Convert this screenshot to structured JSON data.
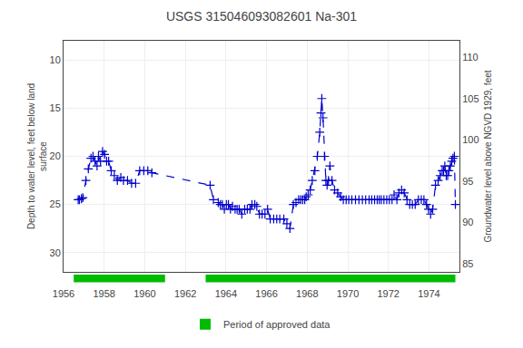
{
  "chart_data": {
    "type": "line",
    "title": "USGS 315046093082601 Na-301",
    "ylabel": "Depth to water level, feet below land\nsurface",
    "y2label": "Groundwater level above NGVD 1929, feet",
    "xlim": [
      1956,
      1975.5
    ],
    "xticks": [
      1956,
      1958,
      1960,
      1962,
      1964,
      1966,
      1968,
      1970,
      1972,
      1974
    ],
    "ylim": [
      32,
      8
    ],
    "yticks": [
      10,
      15,
      20,
      25,
      30
    ],
    "y2lim": [
      84,
      112
    ],
    "y2ticks": [
      85,
      90,
      95,
      100,
      105,
      110
    ],
    "grid": true,
    "legend": "bottom",
    "x": [
      1956.72,
      1956.78,
      1956.88,
      1956.95,
      1957.1,
      1957.22,
      1957.35,
      1957.45,
      1957.55,
      1957.65,
      1957.72,
      1957.82,
      1957.92,
      1958.02,
      1958.12,
      1958.22,
      1958.35,
      1958.5,
      1958.65,
      1958.82,
      1958.95,
      1959.15,
      1959.35,
      1959.55,
      1959.75,
      1959.95,
      1960.15,
      1960.35,
      1963.22,
      1963.38,
      1963.62,
      1963.72,
      1963.82,
      1963.92,
      1964.02,
      1964.12,
      1964.22,
      1964.32,
      1964.45,
      1964.55,
      1964.65,
      1964.78,
      1964.92,
      1965.05,
      1965.18,
      1965.28,
      1965.42,
      1965.52,
      1965.65,
      1965.78,
      1965.92,
      1966.05,
      1966.18,
      1966.35,
      1966.5,
      1966.65,
      1966.85,
      1967.0,
      1967.15,
      1967.32,
      1967.45,
      1967.58,
      1967.68,
      1967.78,
      1967.88,
      1967.95,
      1968.05,
      1968.15,
      1968.25,
      1968.38,
      1968.5,
      1968.62,
      1968.68,
      1968.72,
      1968.78,
      1968.85,
      1968.92,
      1968.98,
      1969.05,
      1969.12,
      1969.22,
      1969.35,
      1969.5,
      1969.65,
      1969.78,
      1969.92,
      1970.05,
      1970.2,
      1970.38,
      1970.55,
      1970.72,
      1970.88,
      1971.05,
      1971.18,
      1971.32,
      1971.45,
      1971.55,
      1971.65,
      1971.78,
      1971.92,
      1972.05,
      1972.18,
      1972.28,
      1972.42,
      1972.52,
      1972.65,
      1972.78,
      1972.92,
      1973.05,
      1973.18,
      1973.32,
      1973.48,
      1973.62,
      1973.75,
      1973.88,
      1973.98,
      1974.08,
      1974.18,
      1974.32,
      1974.45,
      1974.55,
      1974.65,
      1974.72,
      1974.78,
      1974.85,
      1974.92,
      1974.98,
      1975.05,
      1975.12,
      1975.18,
      1975.25,
      1975.3
    ],
    "series": [
      {
        "color": "#0000cc",
        "marker": "plus",
        "line_style": "dashed",
        "values": [
          24.5,
          24.5,
          24.4,
          24.3,
          22.5,
          21.3,
          20.2,
          20.0,
          20.5,
          21.0,
          20.0,
          20.5,
          19.5,
          19.8,
          20.5,
          20.5,
          21.5,
          22.0,
          22.5,
          22.2,
          22.5,
          22.5,
          22.8,
          22.8,
          21.5,
          21.5,
          21.5,
          21.7,
          23.0,
          24.5,
          24.8,
          25.0,
          25.0,
          25.5,
          25.0,
          25.0,
          25.5,
          25.2,
          25.5,
          25.5,
          25.5,
          26.0,
          25.5,
          25.5,
          25.5,
          25.0,
          25.0,
          25.2,
          26.0,
          26.0,
          26.0,
          25.5,
          26.5,
          26.5,
          26.5,
          26.5,
          26.5,
          27.0,
          27.5,
          25.0,
          24.8,
          24.5,
          24.5,
          24.5,
          24.5,
          24.2,
          24.0,
          23.5,
          22.5,
          21.5,
          20.0,
          17.5,
          15.5,
          14.0,
          16.0,
          20.0,
          22.5,
          23.0,
          22.5,
          21.0,
          22.5,
          23.5,
          23.8,
          24.2,
          24.5,
          24.5,
          24.5,
          24.5,
          24.5,
          24.5,
          24.5,
          24.5,
          24.5,
          24.5,
          24.5,
          24.5,
          24.5,
          24.5,
          24.5,
          24.5,
          24.5,
          24.5,
          24.0,
          24.5,
          23.8,
          23.5,
          23.8,
          24.5,
          25.0,
          25.0,
          25.0,
          24.5,
          24.5,
          24.5,
          25.0,
          25.5,
          26.0,
          25.5,
          23.0,
          22.5,
          22.0,
          21.5,
          21.5,
          21.0,
          22.0,
          22.0,
          21.5,
          21.0,
          20.5,
          20.2,
          20.0,
          25.0
        ]
      }
    ],
    "approved_periods": {
      "name": "Period of approved data",
      "color": "#00bb00",
      "ranges": [
        [
          1956.5,
          1961.0
        ],
        [
          1963.0,
          1975.3
        ]
      ]
    }
  }
}
